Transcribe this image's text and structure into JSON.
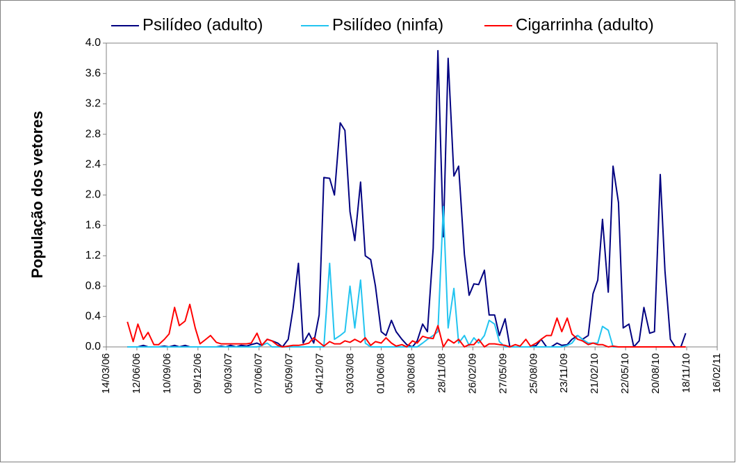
{
  "chart_data": {
    "type": "line",
    "y_label": "População dos vetores",
    "x": [
      "15/05/06",
      "01/06/06",
      "15/06/06",
      "01/07/06",
      "15/07/06",
      "01/08/06",
      "15/08/06",
      "01/09/06",
      "15/09/06",
      "01/10/06",
      "15/10/06",
      "01/11/06",
      "15/11/06",
      "01/12/06",
      "15/12/06",
      "01/01/07",
      "15/01/07",
      "01/02/07",
      "15/02/07",
      "01/03/07",
      "15/03/07",
      "01/04/07",
      "15/04/07",
      "01/05/07",
      "15/05/07",
      "01/06/07",
      "15/06/07",
      "01/07/07",
      "15/07/07",
      "01/08/07",
      "15/08/07",
      "01/09/07",
      "15/09/07",
      "01/10/07",
      "15/10/07",
      "01/11/07",
      "15/11/07",
      "01/12/07",
      "15/12/07",
      "01/01/08",
      "15/01/08",
      "01/02/08",
      "15/02/08",
      "01/03/08",
      "15/03/08",
      "01/04/08",
      "15/04/08",
      "01/05/08",
      "15/05/08",
      "01/06/08",
      "15/06/08",
      "01/07/08",
      "15/07/08",
      "01/08/08",
      "15/08/08",
      "01/09/08",
      "15/09/08",
      "01/10/08",
      "15/10/08",
      "01/11/08",
      "15/11/08",
      "01/12/08",
      "15/12/08",
      "01/01/09",
      "15/01/09",
      "01/02/09",
      "15/02/09",
      "01/03/09",
      "15/03/09",
      "01/04/09",
      "15/04/09",
      "01/05/09",
      "15/05/09",
      "01/06/09",
      "15/06/09",
      "01/07/09",
      "15/07/09",
      "01/08/09",
      "15/08/09",
      "01/09/09",
      "15/09/09",
      "01/10/09",
      "15/10/09",
      "01/11/09",
      "15/11/09",
      "01/12/09",
      "15/12/09",
      "01/01/10",
      "15/01/10",
      "01/02/10",
      "15/02/10",
      "01/03/10",
      "15/03/10",
      "01/04/10",
      "15/04/10",
      "01/05/10",
      "15/05/10",
      "01/06/10",
      "15/06/10",
      "01/07/10",
      "15/07/10",
      "01/08/10",
      "15/08/10",
      "01/09/10",
      "15/09/10",
      "01/10/10",
      "15/10/10",
      "01/11/10",
      "15/11/10"
    ],
    "series": [
      {
        "name": "Psilídeo (adulto)",
        "color": "#000080",
        "values": [
          0,
          0,
          0,
          0.02,
          0,
          0,
          0,
          0.01,
          0,
          0.02,
          0,
          0.02,
          0,
          0,
          0,
          0,
          0,
          0,
          0.01,
          0,
          0.02,
          0,
          0.02,
          0.01,
          0.03,
          0.05,
          0.02,
          0.1,
          0.08,
          0.05,
          0,
          0.1,
          0.5,
          1.1,
          0.05,
          0.18,
          0.05,
          0.42,
          2.23,
          2.22,
          2.0,
          2.95,
          2.85,
          1.78,
          1.4,
          2.17,
          1.2,
          1.15,
          0.8,
          0.2,
          0.15,
          0.35,
          0.2,
          0.1,
          0.03,
          0,
          0.08,
          0.3,
          0.2,
          1.3,
          3.9,
          1.45,
          3.8,
          2.25,
          2.38,
          1.22,
          0.68,
          0.83,
          0.82,
          1.01,
          0.42,
          0.42,
          0.15,
          0.37,
          0,
          0,
          0,
          0,
          0,
          0.02,
          0.1,
          0,
          0,
          0.05,
          0.02,
          0.03,
          0.1,
          0.15,
          0.1,
          0.15,
          0.7,
          0.88,
          1.68,
          0.72,
          2.38,
          1.9,
          0.25,
          0.3,
          0,
          0.08,
          0.52,
          0.18,
          0.2,
          2.27,
          1.0,
          0.1,
          0,
          0,
          0.18
        ]
      },
      {
        "name": "Psilídeo (ninfa)",
        "color": "#22c4f0",
        "values": [
          0,
          0,
          0,
          0,
          0,
          0,
          0,
          0,
          0,
          0,
          0,
          0,
          0,
          0,
          0,
          0,
          0,
          0,
          0,
          0,
          0,
          0,
          0,
          0,
          0,
          0,
          0.02,
          0.05,
          0,
          0,
          0,
          0,
          0,
          0,
          0,
          0,
          0,
          0,
          0,
          1.1,
          0.1,
          0.15,
          0.2,
          0.8,
          0.25,
          0.88,
          0.05,
          0,
          0,
          0,
          0,
          0,
          0,
          0,
          0,
          0,
          0,
          0.05,
          0.1,
          0.15,
          0.2,
          1.85,
          0.25,
          0.77,
          0.05,
          0.15,
          0.02,
          0.12,
          0.05,
          0.15,
          0.35,
          0.3,
          0.07,
          0,
          0,
          0,
          0,
          0,
          0,
          0,
          0,
          0,
          0,
          0,
          0,
          0.02,
          0.05,
          0.15,
          0.1,
          0.05,
          0.05,
          0.05,
          0.27,
          0.22,
          0,
          0,
          0,
          0,
          0,
          0,
          0,
          null,
          null,
          null,
          null,
          null,
          null,
          null,
          null
        ]
      },
      {
        "name": "Cigarrinha (adulto)",
        "color": "#ff0000",
        "values": [
          0.33,
          0.07,
          0.3,
          0.1,
          0.19,
          0.03,
          0.03,
          0.1,
          0.17,
          0.52,
          0.28,
          0.34,
          0.56,
          0.25,
          0.04,
          0.1,
          0.15,
          0.06,
          0.04,
          0.04,
          0.04,
          0.04,
          0.04,
          0.04,
          0.05,
          0.18,
          0.02,
          0.1,
          0.08,
          0.02,
          0,
          0.01,
          0.02,
          0.02,
          0.03,
          0.05,
          0.12,
          0.06,
          0.01,
          0.07,
          0.04,
          0.04,
          0.08,
          0.06,
          0.1,
          0.06,
          0.12,
          0.02,
          0.07,
          0.05,
          0.12,
          0.05,
          0.01,
          0.03,
          0,
          0.08,
          0.05,
          0.14,
          0.12,
          0.11,
          0.28,
          0,
          0.1,
          0.05,
          0.1,
          0,
          0.03,
          0.03,
          0.1,
          0,
          0.04,
          0.04,
          0.03,
          0.02,
          0,
          0.03,
          0.01,
          0.1,
          0.01,
          0.05,
          0.1,
          0.15,
          0.15,
          0.38,
          0.2,
          0.38,
          0.17,
          0.1,
          0.08,
          0.03,
          0.05,
          0.03,
          0.03,
          0,
          0.01,
          0,
          0,
          0,
          0,
          0,
          0,
          0,
          0,
          0,
          0,
          0,
          0,
          0,
          0
        ]
      }
    ],
    "xlim": [
      "14/03/06",
      "16/02/11"
    ],
    "xticks": [
      "14/03/06",
      "12/06/06",
      "10/09/06",
      "09/12/06",
      "09/03/07",
      "07/06/07",
      "05/09/07",
      "04/12/07",
      "03/03/08",
      "01/06/08",
      "30/08/08",
      "28/11/08",
      "26/02/09",
      "27/05/09",
      "25/08/09",
      "23/11/09",
      "21/02/10",
      "22/05/10",
      "20/08/10",
      "18/11/10",
      "16/02/11"
    ],
    "ylim": [
      0,
      4
    ],
    "yticks": [
      {
        "value": 0,
        "label": "0.0"
      },
      0.4,
      0.8,
      1.2,
      1.6,
      {
        "value": 2,
        "label": "2.0"
      },
      2.4,
      2.8,
      3.2,
      3.6,
      {
        "value": 4,
        "label": "4.0"
      }
    ],
    "grid": false,
    "legend": "top"
  }
}
